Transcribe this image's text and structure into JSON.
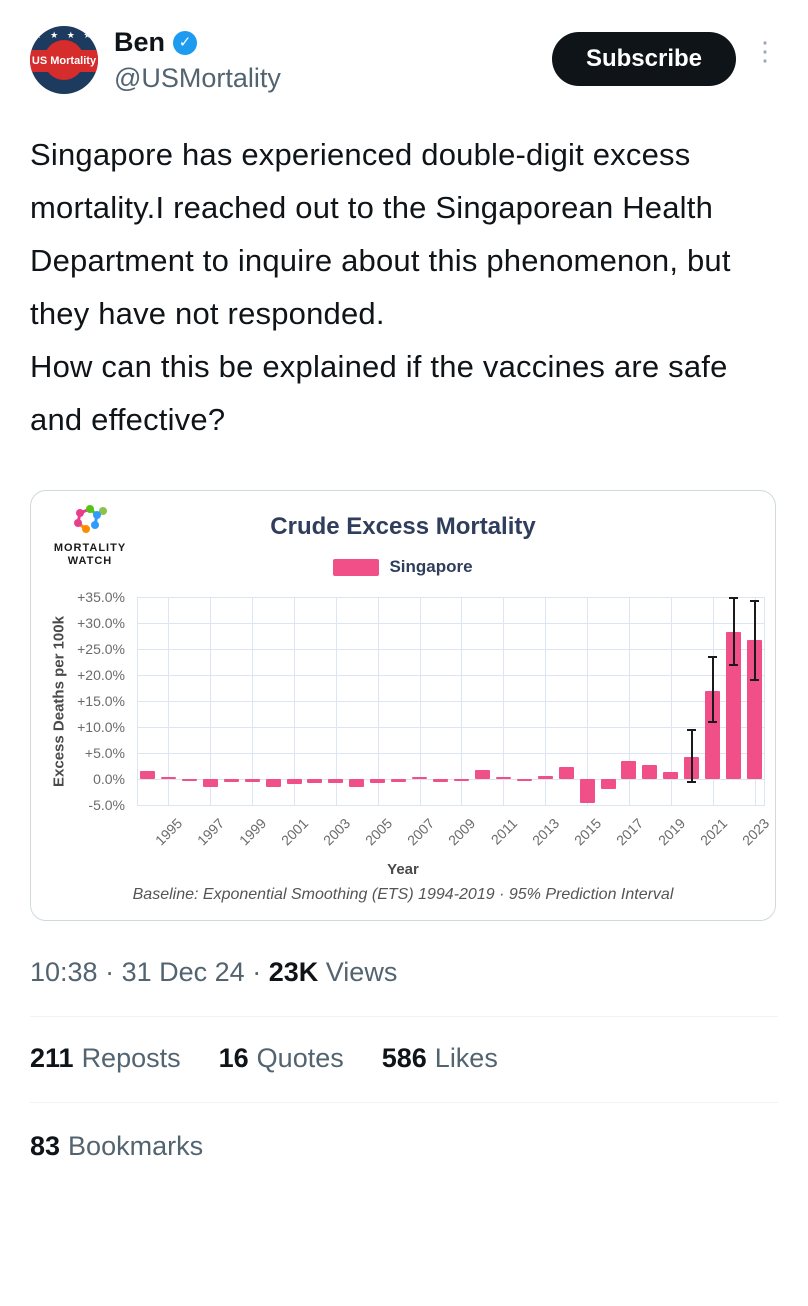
{
  "header": {
    "avatar": {
      "text": "US Mortality",
      "stars": "★ ★ ★ ★"
    },
    "name": "Ben",
    "verified_icon": "✓",
    "handle": "@USMortality",
    "subscribe_label": "Subscribe",
    "more_icon": "⋮"
  },
  "tweet": {
    "paragraphs": [
      "Singapore has experienced double-digit excess mortality.I reached out to the Singaporean Health Department to inquire about this phenomenon, but they have not responded.",
      "How can this be explained if the vaccines are safe and effective?"
    ]
  },
  "card": {
    "logo_line1": "MORTALITY",
    "logo_line2": "WATCH"
  },
  "colors": {
    "bar_pink": "#f04f87",
    "grid": "#dde5f3",
    "title_navy": "#2f3e5c",
    "verified_blue": "#1d9bf0",
    "subscribe_black": "#0f1419",
    "muted_gray": "#536471"
  },
  "chart_data": {
    "type": "bar",
    "title": "Crude Excess Mortality",
    "legend": [
      {
        "label": "Singapore",
        "color": "#f04f87"
      }
    ],
    "xlabel": "Year",
    "ylabel": "Excess Deaths per 100k",
    "caption": "Baseline: Exponential Smoothing (ETS) 1994-2019 · 95% Prediction Interval",
    "ylim": [
      -5,
      35
    ],
    "ytick_labels": [
      "+35.0%",
      "+30.0%",
      "+25.0%",
      "+20.0%",
      "+15.0%",
      "+10.0%",
      "+5.0%",
      "0.0%",
      "-5.0%"
    ],
    "xtick_labels": [
      "1995",
      "1997",
      "1999",
      "2001",
      "2003",
      "2005",
      "2007",
      "2009",
      "2011",
      "2013",
      "2015",
      "2017",
      "2019",
      "2021",
      "2023"
    ],
    "years": [
      1994,
      1995,
      1996,
      1997,
      1998,
      1999,
      2000,
      2001,
      2002,
      2003,
      2004,
      2005,
      2006,
      2007,
      2008,
      2009,
      2010,
      2011,
      2012,
      2013,
      2014,
      2015,
      2016,
      2017,
      2018,
      2019,
      2020,
      2021,
      2022,
      2023
    ],
    "values": [
      1.5,
      0.4,
      -0.3,
      -1.5,
      -0.6,
      -0.6,
      -1.5,
      -0.9,
      -0.7,
      -0.8,
      -1.5,
      -0.8,
      -0.6,
      0.2,
      -0.5,
      -0.2,
      1.8,
      0.4,
      -0.2,
      0.5,
      2.4,
      -4.6,
      -2.0,
      3.4,
      2.7,
      1.3,
      4.2,
      17.0,
      28.2,
      26.8
    ],
    "error_bars": [
      {
        "year": 2020,
        "low": -0.5,
        "high": 9.5
      },
      {
        "year": 2021,
        "low": 11.0,
        "high": 23.5
      },
      {
        "year": 2022,
        "low": 22.0,
        "high": 34.8
      },
      {
        "year": 2023,
        "low": 19.0,
        "high": 34.2
      }
    ],
    "grid": true,
    "legend_position": "top"
  },
  "footer": {
    "time": "10:38",
    "date": "31 Dec 24",
    "dot": "·",
    "views_count": "23K",
    "views_label": "Views",
    "stats": [
      {
        "count": "211",
        "label": "Reposts"
      },
      {
        "count": "16",
        "label": "Quotes"
      },
      {
        "count": "586",
        "label": "Likes"
      }
    ],
    "bookmarks_count": "83",
    "bookmarks_label": "Bookmarks"
  }
}
